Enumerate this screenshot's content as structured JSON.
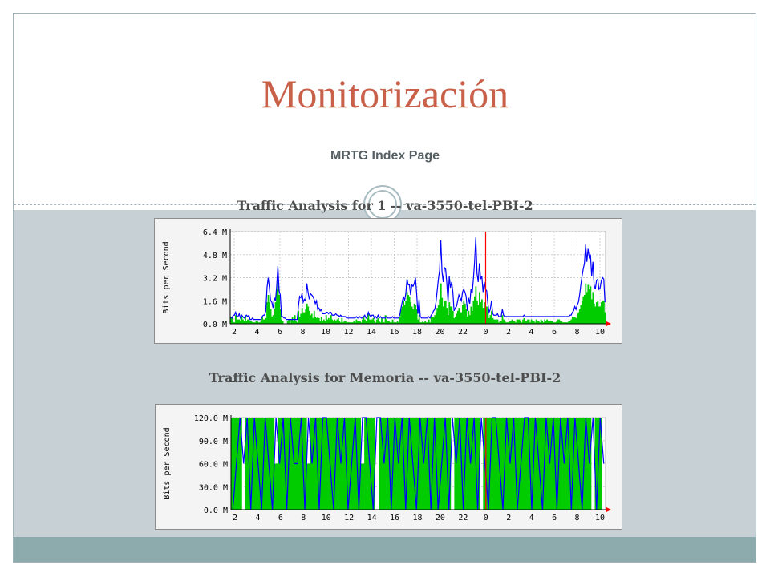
{
  "slide": {
    "title": "Monitorización",
    "subtitle": "MRTG Index Page"
  },
  "colors": {
    "title": "#c9614a",
    "in_traffic": "#00cc00",
    "out_traffic": "#0000ff",
    "now_marker": "#ff0000",
    "chart_bg": "#f4f4f4"
  },
  "chart_data": [
    {
      "type": "area",
      "heading": "Traffic Analysis for 1 -- va-3550-tel-PBI-2",
      "ylabel": "Bits per Second",
      "yticks": [
        "0.0 M",
        "1.6 M",
        "3.2 M",
        "4.8 M",
        "6.4 M"
      ],
      "ylim": [
        0,
        6.4
      ],
      "xticks": [
        "2",
        "4",
        "6",
        "8",
        "10",
        "12",
        "14",
        "16",
        "18",
        "20",
        "22",
        "0",
        "2",
        "4",
        "6",
        "8",
        "10"
      ],
      "now_index": 66,
      "grid": true,
      "series": [
        {
          "color": "#00cc00",
          "values": [
            0.5,
            0.5,
            0.1,
            0.1,
            0.6,
            0.3,
            0.3,
            0.3,
            0.2,
            0.5,
            0.3,
            0.2,
            0.6,
            0.2,
            0.3,
            0.3,
            0.2,
            0.2,
            0.1,
            0.1,
            0.1,
            0.2,
            0.2,
            0.1,
            0.1,
            0.2,
            0.5,
            0.3,
            0.3,
            0.4,
            1.5,
            2.0,
            1.5,
            1.0,
            0.5,
            0.6,
            1.0,
            1.5,
            2.4,
            3.0,
            2.0,
            1.0,
            0.3,
            0.2,
            0.0,
            0.0,
            0.0,
            0.2,
            0.3,
            0.0,
            0.3,
            0.5,
            0.2,
            0.6,
            0.2,
            0.1,
            0.9,
            0.5,
            0.7,
            1.1,
            0.8,
            0.8,
            1.0,
            1.4,
            1.2,
            0.9,
            0.6,
            0.7,
            0.4,
            0.9,
            0.5,
            0.4,
            0.5,
            0.4,
            0.2,
            0.5,
            0.2,
            0.3,
            0.2,
            0.6,
            0.3,
            0.4,
            0.3,
            0.6,
            0.3,
            0.2,
            0.3,
            0.2,
            0.3,
            0.4,
            0.2,
            0.1,
            0.4,
            0.1,
            0.2,
            0.2,
            0.1,
            0.1,
            0.1,
            0.1,
            0.1,
            0.1,
            0.2,
            0.1,
            0.3,
            0.2,
            0.2,
            0.2,
            0.1,
            0.3,
            0.5,
            0.3,
            0.2,
            0.4,
            0.7,
            0.3,
            0.2,
            0.3,
            0.4,
            0.2,
            0.1,
            0.3,
            0.4,
            0.2,
            0.1,
            0.4,
            0.1,
            0.1,
            0.6,
            0.3,
            0.2,
            0.2,
            0.1,
            0.1,
            0.3,
            0.1,
            0.1,
            0.1,
            0.2,
            0.1,
            0.5,
            1.0,
            1.2,
            1.6,
            1.3,
            1.6,
            2.2,
            2.0,
            1.9,
            1.5,
            1.2,
            1.0,
            1.4,
            1.3,
            1.0,
            0.3,
            0.6,
            0.1,
            0.1,
            0.2,
            0.1,
            0.2,
            0.1,
            0.1,
            0.3,
            0.1,
            0.5,
            0.5,
            0.5,
            0.6,
            0.8,
            1.1,
            1.3,
            1.7,
            2.8,
            1.8,
            1.2,
            1.6,
            1.6,
            1.1,
            0.6,
            1.5,
            1.2,
            1.2,
            0.9,
            0.4,
            0.5,
            0.7,
            0.9,
            1.1,
            0.8,
            0.8,
            1.3,
            1.6,
            1.4,
            1.0,
            0.5,
            0.9,
            0.6,
            1.2,
            0.9,
            1.6,
            1.9,
            2.6,
            1.6,
            1.3,
            2.2,
            1.5,
            1.7,
            1.1,
            1.5,
            1.1,
            1.2,
            0.8,
            0.4,
            0.6,
            0.9,
            0.4,
            0.3,
            0.3,
            0.3,
            0.3,
            0.1,
            0.2,
            0.2,
            0.6,
            0.3,
            0.2,
            0.1,
            0.1,
            0.1,
            0.2,
            0.2,
            0.3,
            0.2,
            0.2,
            0.1,
            0.3,
            0.3,
            0.3,
            0.2,
            0.1,
            0.3,
            0.4,
            0.2,
            0.2,
            0.3,
            0.3,
            0.1,
            0.3,
            0.2,
            0.2,
            0.1,
            0.3,
            0.2,
            0.2,
            0.1,
            0.3,
            0.2,
            0.1,
            0.3,
            0.2,
            0.3,
            0.2,
            0.2,
            0.2,
            0.2,
            0.1,
            0.1,
            0.1,
            0.2,
            0.3,
            0.3,
            0.2,
            0.2,
            0.1,
            0.1,
            0.1,
            0.1,
            0.1,
            0.2,
            0.2,
            0.3,
            0.5,
            0.5,
            0.5,
            0.4,
            0.7,
            0.8,
            1.0,
            1.3,
            1.6,
            1.9,
            2.0,
            2.8,
            2.2,
            2.7,
            2.4,
            2.6,
            1.7,
            2.2,
            1.4,
            1.2,
            1.5,
            1.6,
            1.2,
            1.2,
            1.5,
            1.6,
            1.6,
            0.8
          ]
        },
        {
          "color": "#0000ff",
          "values": [
            0.4,
            0.4,
            0.6,
            0.6,
            0.8,
            0.5,
            0.5,
            0.7,
            0.4,
            0.6,
            0.5,
            0.4,
            0.5,
            0.6,
            0.5,
            0.6,
            0.3,
            0.3,
            0.4,
            0.3,
            0.3,
            0.3,
            0.3,
            0.3,
            0.3,
            0.3,
            0.5,
            0.6,
            0.6,
            0.9,
            2.5,
            3.2,
            2.5,
            1.6,
            1.5,
            1.1,
            1.8,
            1.6,
            2.6,
            4.0,
            2.3,
            2.0,
            0.5,
            0.5,
            0.4,
            0.4,
            0.3,
            0.3,
            0.3,
            0.3,
            0.3,
            0.3,
            0.3,
            0.3,
            0.3,
            0.3,
            1.2,
            1.9,
            1.8,
            2.1,
            1.5,
            1.7,
            1.6,
            2.8,
            2.2,
            1.7,
            2.1,
            2.0,
            1.9,
            1.7,
            1.4,
            1.6,
            1.0,
            1.1,
            0.9,
            1.0,
            0.7,
            0.7,
            0.7,
            0.8,
            0.8,
            0.7,
            0.8,
            0.8,
            0.6,
            0.6,
            0.6,
            0.7,
            0.6,
            0.6,
            0.5,
            0.6,
            0.5,
            0.5,
            0.5,
            0.5,
            0.4,
            0.4,
            0.4,
            0.4,
            0.4,
            0.4,
            0.4,
            0.4,
            0.5,
            0.4,
            0.4,
            0.5,
            0.4,
            0.4,
            0.5,
            0.6,
            0.4,
            0.5,
            0.8,
            0.6,
            0.5,
            0.6,
            0.6,
            0.4,
            0.5,
            0.4,
            0.6,
            0.4,
            0.5,
            0.4,
            0.4,
            0.4,
            0.4,
            0.5,
            0.4,
            0.4,
            0.4,
            0.4,
            0.5,
            0.4,
            0.4,
            0.4,
            0.4,
            0.4,
            0.6,
            1.1,
            1.5,
            1.9,
            1.6,
            2.1,
            3.1,
            2.7,
            2.7,
            2.0,
            2.7,
            2.6,
            2.8,
            3.2,
            2.1,
            0.7,
            1.7,
            0.5,
            0.4,
            0.4,
            0.4,
            0.4,
            0.4,
            0.4,
            0.5,
            0.4,
            0.6,
            0.7,
            0.9,
            1.0,
            1.5,
            2.3,
            3.1,
            3.7,
            5.8,
            3.6,
            2.9,
            3.9,
            3.8,
            2.8,
            1.5,
            3.3,
            2.5,
            2.9,
            2.2,
            0.9,
            1.1,
            1.2,
            1.6,
            2.0,
            1.8,
            1.6,
            2.2,
            2.4,
            2.2,
            1.9,
            0.9,
            1.8,
            1.4,
            2.4,
            2.1,
            3.1,
            4.3,
            6.0,
            3.5,
            2.9,
            4.2,
            3.1,
            3.3,
            2.2,
            2.9,
            2.4,
            2.3,
            1.4,
            0.8,
            1.0,
            1.6,
            0.7,
            0.6,
            0.6,
            0.6,
            0.7,
            0.5,
            0.5,
            0.5,
            1.0,
            0.6,
            0.5,
            0.5,
            0.5,
            0.5,
            0.5,
            0.5,
            0.5,
            0.5,
            0.5,
            0.5,
            0.5,
            0.5,
            0.5,
            0.5,
            0.5,
            0.5,
            0.6,
            0.5,
            0.5,
            0.5,
            0.5,
            0.5,
            0.5,
            0.5,
            0.5,
            0.5,
            0.5,
            0.5,
            0.5,
            0.5,
            0.5,
            0.5,
            0.5,
            0.5,
            0.5,
            0.5,
            0.5,
            0.5,
            0.5,
            0.5,
            0.5,
            0.5,
            0.5,
            0.5,
            0.5,
            0.5,
            0.5,
            0.5,
            0.5,
            0.5,
            0.5,
            0.5,
            0.5,
            0.5,
            0.6,
            0.6,
            0.8,
            0.9,
            1.2,
            1.0,
            1.3,
            1.5,
            2.0,
            2.7,
            3.3,
            3.8,
            4.2,
            5.5,
            4.3,
            5.2,
            4.6,
            4.8,
            3.3,
            4.3,
            2.7,
            2.4,
            3.0,
            3.1,
            2.4,
            2.5,
            3.0,
            3.2,
            3.1,
            1.5
          ]
        }
      ]
    },
    {
      "type": "area",
      "heading": "Traffic Analysis for Memoria -- va-3550-tel-PBI-2",
      "ylabel": "Bits per Second",
      "yticks": [
        "0.0 M",
        "30.0 M",
        "60.0 M",
        "90.0 M",
        "120.0 M"
      ],
      "ylim": [
        0,
        120
      ],
      "xticks": [
        "2",
        "4",
        "6",
        "8",
        "10",
        "12",
        "14",
        "16",
        "18",
        "20",
        "22",
        "0",
        "2",
        "4",
        "6",
        "8",
        "10"
      ],
      "now_index": 66,
      "grid": true,
      "series": [
        {
          "color": "#00cc00",
          "values": [
            120,
            120,
            120,
            0,
            120,
            120,
            120,
            120,
            120,
            120,
            120,
            120,
            60,
            120,
            120,
            120,
            120,
            120,
            120,
            120,
            120,
            60,
            120,
            120,
            120,
            120,
            120,
            120,
            120,
            120,
            120,
            120,
            120,
            120,
            120,
            120,
            60,
            120,
            120,
            120,
            0,
            120,
            120,
            120,
            120,
            120,
            120,
            120,
            120,
            120,
            120,
            120,
            120,
            120,
            120,
            120,
            120,
            120,
            120,
            120,
            120,
            0,
            120,
            120,
            120,
            120,
            120,
            120,
            120,
            0,
            120,
            120,
            120,
            120,
            120,
            120,
            120,
            120,
            120,
            120,
            120,
            120,
            120,
            120,
            120,
            120,
            120,
            120,
            120,
            120,
            120,
            120,
            120,
            120,
            120,
            120,
            120,
            120,
            120,
            120,
            0,
            120,
            120,
            0
          ]
        },
        {
          "color": "#0000ff",
          "values": [
            0,
            60,
            120,
            60,
            120,
            0,
            120,
            60,
            0,
            120,
            60,
            0,
            120,
            60,
            120,
            0,
            120,
            60,
            60,
            120,
            0,
            120,
            60,
            120,
            0,
            120,
            120,
            60,
            0,
            120,
            60,
            120,
            0,
            60,
            120,
            0,
            120,
            120,
            60,
            0,
            120,
            120,
            60,
            120,
            0,
            120,
            60,
            120,
            0,
            120,
            60,
            0,
            120,
            60,
            120,
            0,
            120,
            0,
            60,
            120,
            0,
            120,
            60,
            120,
            0,
            120,
            60,
            120,
            0,
            120,
            60,
            0,
            120,
            120,
            60,
            0,
            120,
            60,
            120,
            0,
            60,
            120,
            120,
            0,
            120,
            60,
            0,
            120,
            60,
            120,
            0,
            120,
            60,
            120,
            0,
            120,
            60,
            0,
            120,
            60,
            120,
            0,
            120,
            60
          ]
        }
      ]
    }
  ]
}
